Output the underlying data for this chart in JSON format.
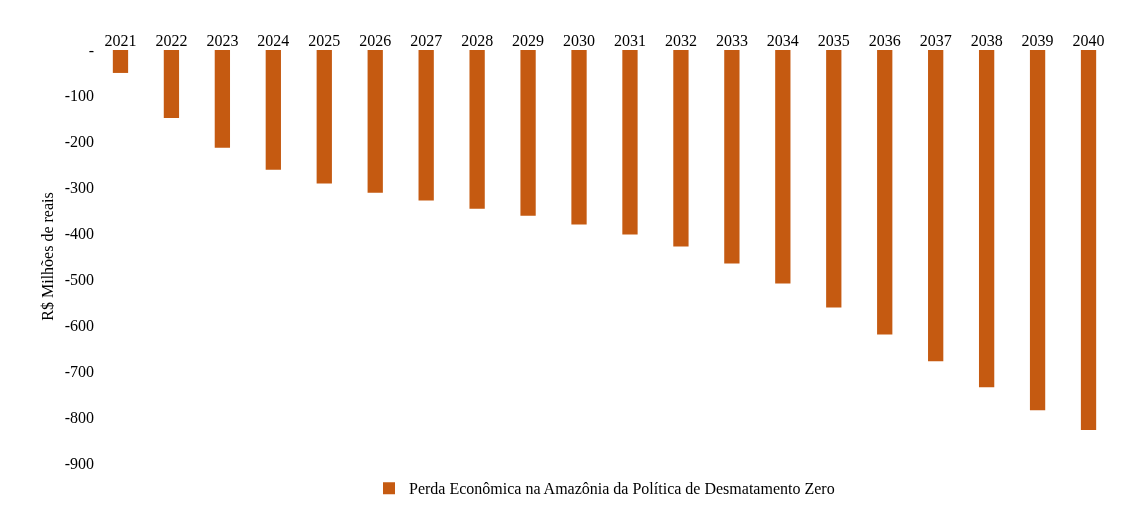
{
  "chart_data": {
    "type": "bar",
    "ylabel": "R$ Milhões de reais",
    "categories": [
      "2021",
      "2022",
      "2023",
      "2024",
      "2025",
      "2026",
      "2027",
      "2028",
      "2029",
      "2030",
      "2031",
      "2032",
      "2033",
      "2034",
      "2035",
      "2036",
      "2037",
      "2038",
      "2039",
      "2040"
    ],
    "series": [
      {
        "name": "Perda Econômica na Amazônia da Política de Desmatamento Zero",
        "color": "#c55a11",
        "values": [
          -50,
          -148,
          -213,
          -261,
          -291,
          -311,
          -328,
          -346,
          -361,
          -380,
          -402,
          -428,
          -465,
          -509,
          -561,
          -620,
          -678,
          -735,
          -785,
          -828
        ]
      }
    ],
    "ylim": [
      -900,
      0
    ],
    "yticks": [
      {
        "value": 0,
        "label": "-"
      },
      -100,
      -200,
      -300,
      -400,
      -500,
      -600,
      -700,
      -800,
      -900
    ],
    "grid": false,
    "legend": "bottom"
  }
}
